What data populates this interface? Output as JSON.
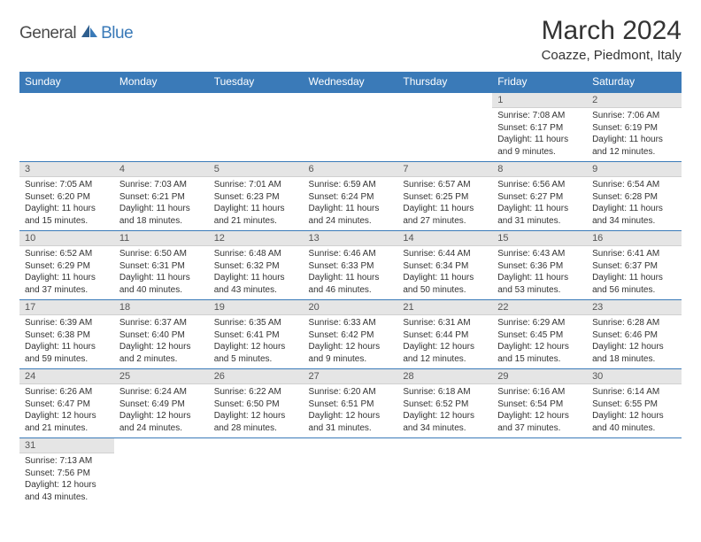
{
  "brand": {
    "part1": "General",
    "part2": "Blue"
  },
  "title": "March 2024",
  "location": "Coazze, Piedmont, Italy",
  "colors": {
    "header_bg": "#3a7ab8",
    "header_text": "#ffffff",
    "daynum_bg": "#e5e5e5",
    "border": "#3a7ab8",
    "text": "#333333",
    "logo_gray": "#4a4a4a",
    "logo_blue": "#3a7ab8"
  },
  "weekdays": [
    "Sunday",
    "Monday",
    "Tuesday",
    "Wednesday",
    "Thursday",
    "Friday",
    "Saturday"
  ],
  "weeks": [
    [
      null,
      null,
      null,
      null,
      null,
      {
        "n": "1",
        "sunrise": "Sunrise: 7:08 AM",
        "sunset": "Sunset: 6:17 PM",
        "daylight": "Daylight: 11 hours and 9 minutes."
      },
      {
        "n": "2",
        "sunrise": "Sunrise: 7:06 AM",
        "sunset": "Sunset: 6:19 PM",
        "daylight": "Daylight: 11 hours and 12 minutes."
      }
    ],
    [
      {
        "n": "3",
        "sunrise": "Sunrise: 7:05 AM",
        "sunset": "Sunset: 6:20 PM",
        "daylight": "Daylight: 11 hours and 15 minutes."
      },
      {
        "n": "4",
        "sunrise": "Sunrise: 7:03 AM",
        "sunset": "Sunset: 6:21 PM",
        "daylight": "Daylight: 11 hours and 18 minutes."
      },
      {
        "n": "5",
        "sunrise": "Sunrise: 7:01 AM",
        "sunset": "Sunset: 6:23 PM",
        "daylight": "Daylight: 11 hours and 21 minutes."
      },
      {
        "n": "6",
        "sunrise": "Sunrise: 6:59 AM",
        "sunset": "Sunset: 6:24 PM",
        "daylight": "Daylight: 11 hours and 24 minutes."
      },
      {
        "n": "7",
        "sunrise": "Sunrise: 6:57 AM",
        "sunset": "Sunset: 6:25 PM",
        "daylight": "Daylight: 11 hours and 27 minutes."
      },
      {
        "n": "8",
        "sunrise": "Sunrise: 6:56 AM",
        "sunset": "Sunset: 6:27 PM",
        "daylight": "Daylight: 11 hours and 31 minutes."
      },
      {
        "n": "9",
        "sunrise": "Sunrise: 6:54 AM",
        "sunset": "Sunset: 6:28 PM",
        "daylight": "Daylight: 11 hours and 34 minutes."
      }
    ],
    [
      {
        "n": "10",
        "sunrise": "Sunrise: 6:52 AM",
        "sunset": "Sunset: 6:29 PM",
        "daylight": "Daylight: 11 hours and 37 minutes."
      },
      {
        "n": "11",
        "sunrise": "Sunrise: 6:50 AM",
        "sunset": "Sunset: 6:31 PM",
        "daylight": "Daylight: 11 hours and 40 minutes."
      },
      {
        "n": "12",
        "sunrise": "Sunrise: 6:48 AM",
        "sunset": "Sunset: 6:32 PM",
        "daylight": "Daylight: 11 hours and 43 minutes."
      },
      {
        "n": "13",
        "sunrise": "Sunrise: 6:46 AM",
        "sunset": "Sunset: 6:33 PM",
        "daylight": "Daylight: 11 hours and 46 minutes."
      },
      {
        "n": "14",
        "sunrise": "Sunrise: 6:44 AM",
        "sunset": "Sunset: 6:34 PM",
        "daylight": "Daylight: 11 hours and 50 minutes."
      },
      {
        "n": "15",
        "sunrise": "Sunrise: 6:43 AM",
        "sunset": "Sunset: 6:36 PM",
        "daylight": "Daylight: 11 hours and 53 minutes."
      },
      {
        "n": "16",
        "sunrise": "Sunrise: 6:41 AM",
        "sunset": "Sunset: 6:37 PM",
        "daylight": "Daylight: 11 hours and 56 minutes."
      }
    ],
    [
      {
        "n": "17",
        "sunrise": "Sunrise: 6:39 AM",
        "sunset": "Sunset: 6:38 PM",
        "daylight": "Daylight: 11 hours and 59 minutes."
      },
      {
        "n": "18",
        "sunrise": "Sunrise: 6:37 AM",
        "sunset": "Sunset: 6:40 PM",
        "daylight": "Daylight: 12 hours and 2 minutes."
      },
      {
        "n": "19",
        "sunrise": "Sunrise: 6:35 AM",
        "sunset": "Sunset: 6:41 PM",
        "daylight": "Daylight: 12 hours and 5 minutes."
      },
      {
        "n": "20",
        "sunrise": "Sunrise: 6:33 AM",
        "sunset": "Sunset: 6:42 PM",
        "daylight": "Daylight: 12 hours and 9 minutes."
      },
      {
        "n": "21",
        "sunrise": "Sunrise: 6:31 AM",
        "sunset": "Sunset: 6:44 PM",
        "daylight": "Daylight: 12 hours and 12 minutes."
      },
      {
        "n": "22",
        "sunrise": "Sunrise: 6:29 AM",
        "sunset": "Sunset: 6:45 PM",
        "daylight": "Daylight: 12 hours and 15 minutes."
      },
      {
        "n": "23",
        "sunrise": "Sunrise: 6:28 AM",
        "sunset": "Sunset: 6:46 PM",
        "daylight": "Daylight: 12 hours and 18 minutes."
      }
    ],
    [
      {
        "n": "24",
        "sunrise": "Sunrise: 6:26 AM",
        "sunset": "Sunset: 6:47 PM",
        "daylight": "Daylight: 12 hours and 21 minutes."
      },
      {
        "n": "25",
        "sunrise": "Sunrise: 6:24 AM",
        "sunset": "Sunset: 6:49 PM",
        "daylight": "Daylight: 12 hours and 24 minutes."
      },
      {
        "n": "26",
        "sunrise": "Sunrise: 6:22 AM",
        "sunset": "Sunset: 6:50 PM",
        "daylight": "Daylight: 12 hours and 28 minutes."
      },
      {
        "n": "27",
        "sunrise": "Sunrise: 6:20 AM",
        "sunset": "Sunset: 6:51 PM",
        "daylight": "Daylight: 12 hours and 31 minutes."
      },
      {
        "n": "28",
        "sunrise": "Sunrise: 6:18 AM",
        "sunset": "Sunset: 6:52 PM",
        "daylight": "Daylight: 12 hours and 34 minutes."
      },
      {
        "n": "29",
        "sunrise": "Sunrise: 6:16 AM",
        "sunset": "Sunset: 6:54 PM",
        "daylight": "Daylight: 12 hours and 37 minutes."
      },
      {
        "n": "30",
        "sunrise": "Sunrise: 6:14 AM",
        "sunset": "Sunset: 6:55 PM",
        "daylight": "Daylight: 12 hours and 40 minutes."
      }
    ],
    [
      {
        "n": "31",
        "sunrise": "Sunrise: 7:13 AM",
        "sunset": "Sunset: 7:56 PM",
        "daylight": "Daylight: 12 hours and 43 minutes."
      },
      null,
      null,
      null,
      null,
      null,
      null
    ]
  ]
}
